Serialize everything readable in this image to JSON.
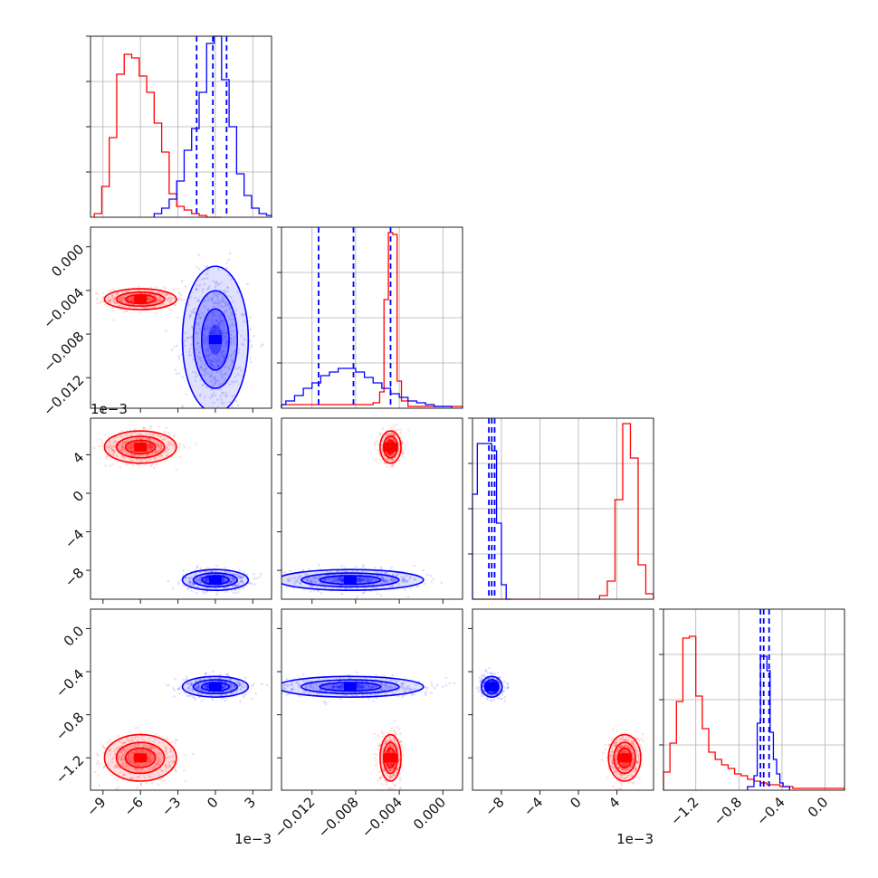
{
  "chart_data": {
    "type": "corner",
    "grid": true,
    "colors": {
      "series_a": "#ff0000",
      "series_b": "#0000ff"
    },
    "parameters": [
      {
        "range": [
          -10.0,
          4.5
        ],
        "ticks": [
          -9,
          -6,
          -3,
          0,
          3
        ],
        "tick_labels": [
          "−9",
          "−6",
          "−3",
          "0",
          "3"
        ],
        "scale": 0.001,
        "offset_label": "1e−3"
      },
      {
        "range": [
          -0.0148,
          0.0018
        ],
        "ticks": [
          -0.012,
          -0.008,
          -0.004,
          0.0
        ],
        "tick_labels": [
          "−0.012",
          "−0.008",
          "−0.004",
          "0.000"
        ],
        "scale": 1,
        "offset_label": ""
      },
      {
        "range": [
          -11.0,
          7.8
        ],
        "ticks": [
          -8,
          -4,
          0,
          4
        ],
        "tick_labels": [
          "−8",
          "−4",
          "0",
          "4"
        ],
        "scale": 0.001,
        "offset_label": "1e−3"
      },
      {
        "range": [
          -1.5,
          0.18
        ],
        "ticks": [
          -1.2,
          -0.8,
          -0.4,
          0.0
        ],
        "tick_labels": [
          "−1.2",
          "−0.8",
          "−0.4",
          "0.0"
        ],
        "scale": 1,
        "offset_label": ""
      }
    ],
    "series": [
      {
        "color": "#ff0000",
        "mean": [
          -6.0,
          -0.0048,
          4.8,
          -1.2
        ],
        "sigma": [
          1.2,
          0.0004,
          0.7,
          0.09
        ],
        "histograms": [
          {
            "bin_edges": [
              -9.7,
              -9.1,
              -8.5,
              -7.9,
              -7.3,
              -6.7,
              -6.1,
              -5.5,
              -4.9,
              -4.3,
              -3.7,
              -3.1,
              -2.5,
              -1.9,
              -1.3,
              -0.7,
              -0.1,
              0.5
            ],
            "counts": [
              0.02,
              0.17,
              0.44,
              0.79,
              0.9,
              0.88,
              0.78,
              0.69,
              0.52,
              0.36,
              0.13,
              0.06,
              0.04,
              0.02,
              0.01,
              0.0,
              0.0
            ]
          },
          {
            "bin_edges": [
              -0.0148,
              -0.0064,
              -0.0058,
              -0.0054,
              -0.005,
              -0.0046,
              -0.0042,
              -0.0038,
              -0.0032,
              0.0018
            ],
            "counts": [
              0.02,
              0.03,
              0.09,
              0.6,
              0.97,
              0.96,
              0.15,
              0.04,
              0.01
            ]
          },
          {
            "bin_edges": [
              -11.0,
              2.2,
              3.0,
              3.8,
              4.6,
              5.4,
              6.2,
              7.0,
              7.8
            ],
            "counts": [
              0.0,
              0.02,
              0.1,
              0.55,
              0.97,
              0.78,
              0.19,
              0.03
            ]
          },
          {
            "bin_edges": [
              -1.5,
              -1.44,
              -1.38,
              -1.32,
              -1.26,
              -1.2,
              -1.14,
              -1.08,
              -1.02,
              -0.96,
              -0.9,
              -0.84,
              -0.78,
              -0.72,
              -0.66,
              -0.6,
              -0.54,
              -0.48,
              -0.42,
              -0.36,
              -0.3,
              -0.18,
              0.18
            ],
            "counts": [
              0.1,
              0.26,
              0.49,
              0.84,
              0.85,
              0.52,
              0.34,
              0.21,
              0.17,
              0.14,
              0.12,
              0.09,
              0.08,
              0.06,
              0.05,
              0.04,
              0.03,
              0.03,
              0.02,
              0.02,
              0.01,
              0.01
            ]
          }
        ]
      },
      {
        "color": "#0000ff",
        "mean": [
          0.0,
          -0.0085,
          -9.0,
          -0.54
        ],
        "sigma": [
          1.1,
          0.0028,
          0.45,
          0.04
        ],
        "histograms": [
          {
            "bin_edges": [
              -4.9,
              -4.3,
              -3.7,
              -3.1,
              -2.5,
              -1.9,
              -1.3,
              -0.7,
              -0.1,
              0.5,
              1.1,
              1.7,
              2.3,
              2.9,
              3.5,
              4.1,
              4.5
            ],
            "counts": [
              0.02,
              0.05,
              0.1,
              0.2,
              0.37,
              0.49,
              0.69,
              0.96,
              1.0,
              0.76,
              0.5,
              0.24,
              0.12,
              0.05,
              0.02,
              0.01
            ]
          },
          {
            "bin_edges": [
              -0.0148,
              -0.0144,
              -0.0136,
              -0.0128,
              -0.012,
              -0.0112,
              -0.0104,
              -0.0096,
              -0.0088,
              -0.008,
              -0.0072,
              -0.0064,
              -0.0056,
              -0.0048,
              -0.004,
              -0.0032,
              -0.0024,
              -0.0016,
              -0.0008,
              0.0,
              0.0008
            ],
            "counts": [
              0.02,
              0.04,
              0.07,
              0.11,
              0.14,
              0.18,
              0.2,
              0.22,
              0.22,
              0.2,
              0.17,
              0.14,
              0.11,
              0.08,
              0.06,
              0.04,
              0.03,
              0.02,
              0.01,
              0.01
            ]
          },
          {
            "bin_edges": [
              -11.0,
              -10.5,
              -10.0,
              -9.5,
              -9.0,
              -8.5,
              -8.0,
              -7.5,
              -7.0
            ],
            "counts": [
              0.58,
              0.86,
              0.86,
              0.86,
              0.82,
              0.42,
              0.08,
              0.0
            ]
          },
          {
            "bin_edges": [
              -0.72,
              -0.66,
              -0.63,
              -0.6,
              -0.57,
              -0.54,
              -0.51,
              -0.48,
              -0.45,
              -0.42,
              -0.39,
              -0.33
            ],
            "counts": [
              0.02,
              0.08,
              0.37,
              0.74,
              0.74,
              0.66,
              0.32,
              0.17,
              0.09,
              0.04,
              0.02
            ]
          }
        ],
        "quantiles": [
          [
            -1.5,
            -0.2,
            0.9
          ],
          [
            -0.0114,
            -0.0082,
            -0.0048
          ],
          [
            -9.3,
            -9.0,
            -8.7
          ],
          [
            -0.6,
            -0.57,
            -0.52
          ]
        ]
      }
    ]
  }
}
